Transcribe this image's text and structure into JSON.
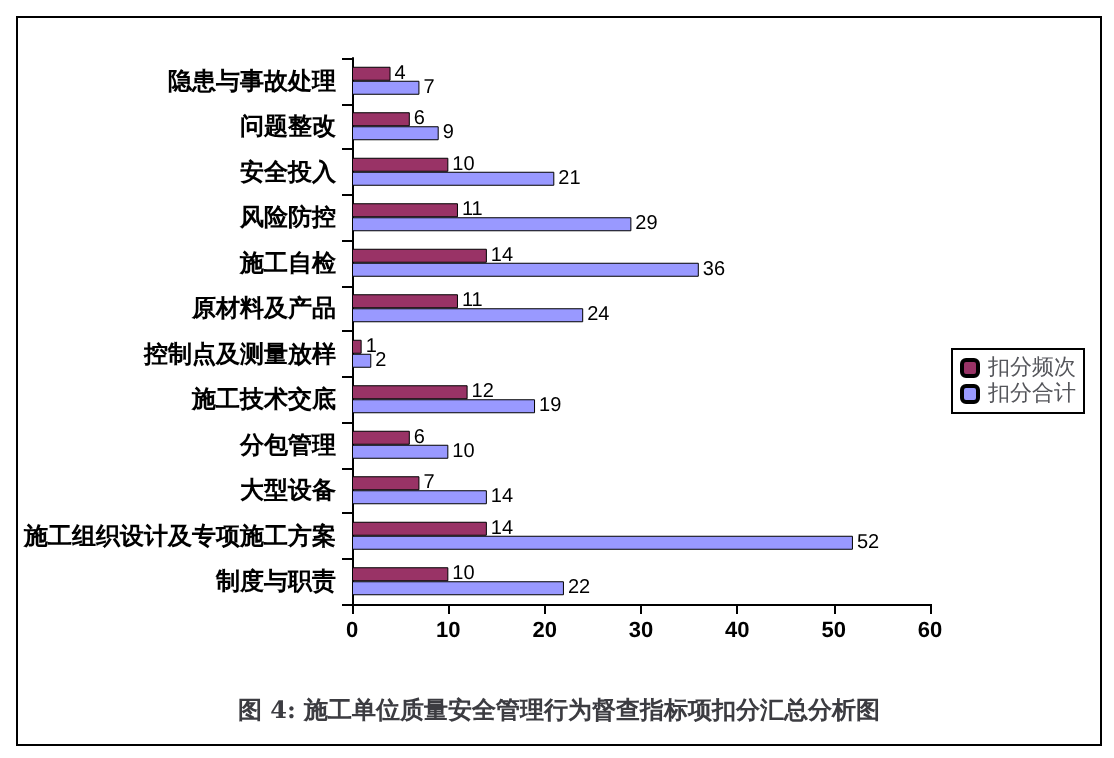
{
  "chart_data": {
    "type": "bar",
    "orientation": "horizontal",
    "title": "图 4: 施工单位质量安全管理行为督查指标项扣分汇总分析图",
    "categories": [
      "隐患与事故处理",
      "问题整改",
      "安全投入",
      "风险防控",
      "施工自检",
      "原材料及产品",
      "控制点及测量放样",
      "施工技术交底",
      "分包管理",
      "大型设备",
      "施工组织设计及专项施工方案",
      "制度与职责"
    ],
    "series": [
      {
        "name": "扣分频次",
        "color": "#993366",
        "values": [
          4,
          6,
          10,
          11,
          14,
          11,
          1,
          12,
          6,
          7,
          14,
          10
        ]
      },
      {
        "name": "扣分合计",
        "color": "#9999ff",
        "values": [
          7,
          9,
          21,
          29,
          36,
          24,
          2,
          19,
          10,
          14,
          52,
          22
        ]
      }
    ],
    "xlim": [
      0,
      60
    ],
    "xticks": [
      0,
      10,
      20,
      30,
      40,
      50,
      60
    ],
    "data_labels": true,
    "grid": false,
    "legend": "right"
  }
}
